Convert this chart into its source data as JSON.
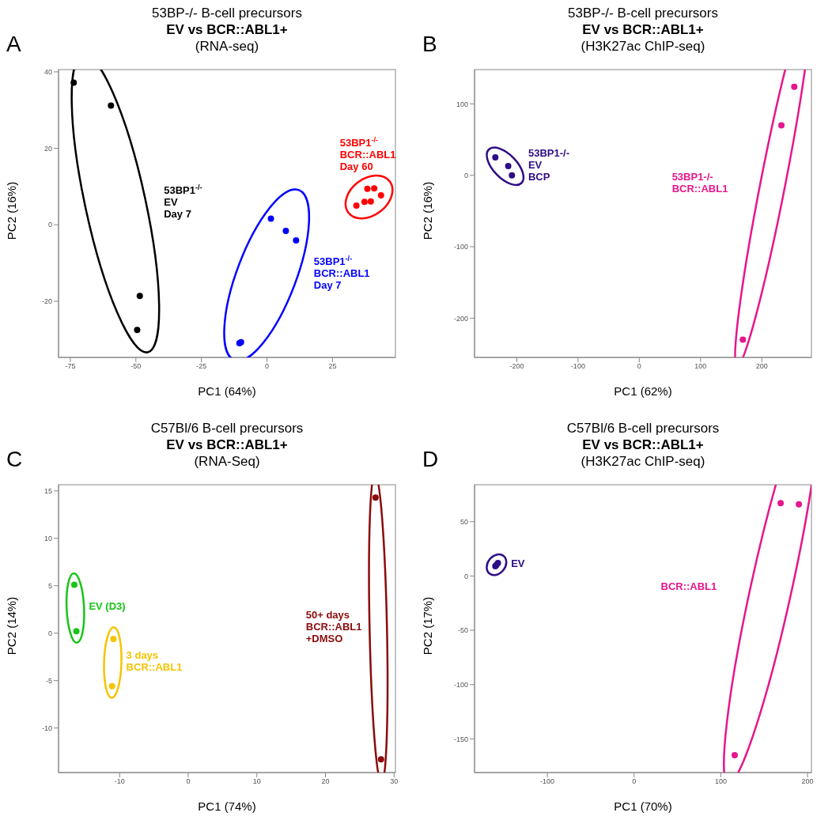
{
  "chart_data": [
    {
      "type": "scatter",
      "title": "53BP-/- B-cell precursors\nEV vs BCR::ABL1+",
      "subtitle": "(RNA-seq)",
      "annotations": [
        "A"
      ],
      "xlabel": "PC1 (64%)",
      "ylabel": "PC2 (16%)",
      "marker": "circle",
      "xlim": [
        -79.5,
        49
      ],
      "ylim": [
        -34.7,
        40.6
      ],
      "xticks": [
        -75,
        -50,
        -25,
        0,
        25
      ],
      "yticks": [
        -20,
        0,
        20,
        40
      ],
      "series": [
        {
          "name": "53BP1$^{-/-}$\nEV\nDay 7",
          "color": "#000000",
          "x": [
            -73.7,
            -59.5,
            -48.5,
            -49.5
          ],
          "values": [
            37.2,
            31.2,
            -18.6,
            -27.5
          ]
        },
        {
          "name": "53BP1$^{-/-}$\nBCR::ABL1\nDay 7",
          "color": "#0000ff",
          "x": [
            1.5,
            7.2,
            11.1,
            -10.5,
            -9.9
          ],
          "values": [
            1.6,
            -1.6,
            -4.1,
            -31.0,
            -30.7
          ]
        },
        {
          "name": "53BP1$^{-/-}$\nBCR::ABL1\nDay 60",
          "color": "#ff0000",
          "x": [
            34.1,
            37.2,
            39.6,
            38.3,
            40.9,
            43.5
          ],
          "values": [
            5.0,
            6.0,
            6.1,
            9.4,
            9.5,
            7.7
          ]
        }
      ]
    },
    {
      "type": "scatter",
      "title": "53BP-/- B-cell precursors\nEV vs BCR::ABL1+",
      "subtitle": "(H3K27ac ChIP-seq)",
      "annotations": [
        "B"
      ],
      "xlabel": "PC1 (62%)",
      "ylabel": "PC2 (16%)",
      "marker": "circle",
      "xlim": [
        -269,
        281
      ],
      "ylim": [
        -255,
        148
      ],
      "xticks": [
        -200,
        -100,
        0,
        100,
        200
      ],
      "yticks": [
        -200,
        -100,
        0,
        100
      ],
      "series": [
        {
          "name": "53BP1-/-\nEV\nBCP",
          "color": "#2e0c87",
          "x": [
            -235,
            -214,
            -208
          ],
          "values": [
            25,
            13,
            0
          ]
        },
        {
          "name": "53BP1-/-\nBCR::ABL1",
          "color": "#e6168c",
          "x": [
            253,
            232,
            169
          ],
          "values": [
            124,
            70,
            -230
          ]
        }
      ]
    },
    {
      "type": "scatter",
      "title": "C57Bl/6 B-cell precursors\nEV vs BCR::ABL1+",
      "subtitle": "(RNA-Seq)",
      "annotations": [
        "C"
      ],
      "xlabel": "PC1 (74%)",
      "ylabel": "PC2 (14%)",
      "marker": "circle",
      "xlim": [
        -18.9,
        30.2
      ],
      "ylim": [
        -14.7,
        15.65
      ],
      "xticks": [
        -10,
        0,
        10,
        20,
        30
      ],
      "yticks": [
        -10,
        -5,
        0,
        5,
        10,
        15
      ],
      "series": [
        {
          "name": "EV (D3)",
          "color": "#18c418",
          "x": [
            -16.6,
            -16.3
          ],
          "values": [
            5.1,
            0.2
          ]
        },
        {
          "name": "3 days\nBCR::ABL1",
          "color": "#f5c400",
          "x": [
            -10.9,
            -11.1
          ],
          "values": [
            -0.6,
            -5.6
          ]
        },
        {
          "name": "50+ days\nBCR::ABL1\n+DMSO",
          "color": "#8b0a0a",
          "x": [
            27.3,
            28.1
          ],
          "values": [
            14.3,
            -13.3
          ]
        }
      ]
    },
    {
      "type": "scatter",
      "title": "C57Bl/6 B-cell precursors\nEV vs BCR::ABL1+",
      "subtitle": "(H3K27ac ChIP-seq)",
      "annotations": [
        "D"
      ],
      "xlabel": "PC1 (70%)",
      "ylabel": "PC2 (17%)",
      "marker": "circle",
      "xlim": [
        -184,
        204.5
      ],
      "ylim": [
        -181,
        84
      ],
      "xticks": [
        -100,
        0,
        100,
        200
      ],
      "yticks": [
        -150,
        -100,
        -50,
        0,
        50
      ],
      "series": [
        {
          "name": "EV",
          "color": "#2e0c87",
          "x": [
            -159,
            -157,
            -160
          ],
          "values": [
            10,
            12,
            9
          ]
        },
        {
          "name": "BCR::ABL1",
          "color": "#e6168c",
          "x": [
            169,
            190,
            116
          ],
          "values": [
            67,
            66,
            -165
          ]
        }
      ]
    }
  ]
}
